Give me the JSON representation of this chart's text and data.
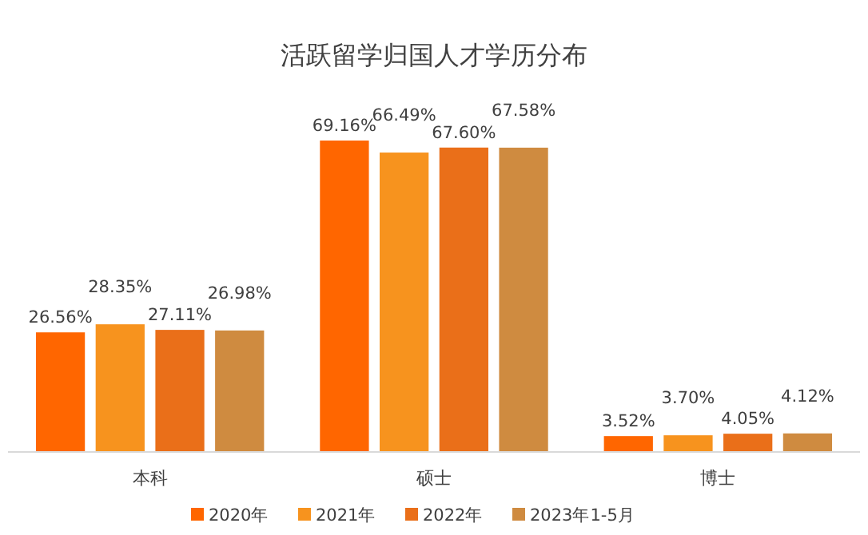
{
  "chart_data": {
    "type": "bar",
    "title": "活跃留学归国人才学历分布",
    "categories": [
      "本科",
      "硕士",
      "博士"
    ],
    "series": [
      {
        "name": "2020年",
        "color": "#ff6600",
        "values": [
          26.56,
          69.16,
          3.52
        ],
        "value_labels": [
          "26.56%",
          "69.16%",
          "3.52%"
        ]
      },
      {
        "name": "2021年",
        "color": "#f7931e",
        "values": [
          28.35,
          66.49,
          3.7
        ],
        "value_labels": [
          "28.35%",
          "66.49%",
          "3.70%"
        ]
      },
      {
        "name": "2022年",
        "color": "#ea6f19",
        "values": [
          27.11,
          67.6,
          4.05
        ],
        "value_labels": [
          "27.11%",
          "67.60%",
          "4.05%"
        ]
      },
      {
        "name": "2023年1-5月",
        "color": "#cf8b40",
        "values": [
          26.98,
          67.58,
          4.12
        ],
        "value_labels": [
          "26.98%",
          "67.58%",
          "4.12%"
        ]
      }
    ],
    "legend": "bottom"
  }
}
